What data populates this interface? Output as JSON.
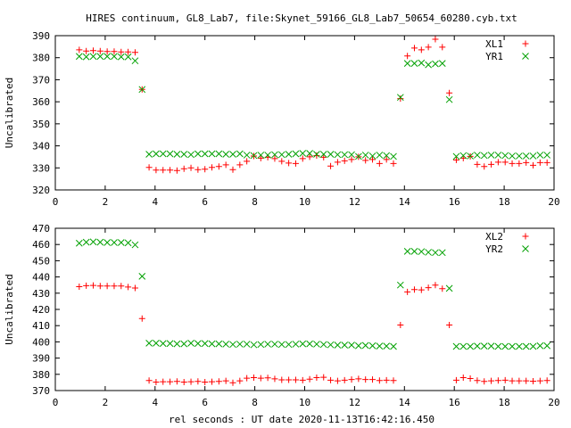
{
  "chart_data": {
    "title": "HIRES continuum, GL8_Lab7, file:Skynet_59166_GL8_Lab7_50654_60280.cyb.txt",
    "xlabel": "rel seconds : UT date 2020-11-13T16:42:16.450",
    "colors": {
      "red": "#ff0000",
      "green": "#00a000"
    },
    "charts": [
      {
        "type": "scatter",
        "ylabel": "Uncalibrated",
        "xlim": [
          0,
          20
        ],
        "ylim": [
          320,
          390
        ],
        "xticks": [
          "0",
          "2",
          "4",
          "6",
          "8",
          "10",
          "12",
          "14",
          "16",
          "18",
          "20"
        ],
        "yticks": [
          "320",
          "330",
          "340",
          "350",
          "360",
          "370",
          "380",
          "390"
        ],
        "legend_position": "top-right",
        "series": [
          {
            "name": "XL1",
            "marker": "plus",
            "color": "#ff0000",
            "x": [
              0.96,
              1.24,
              1.52,
              1.8,
              2.08,
              2.36,
              2.64,
              2.92,
              3.2,
              3.48,
              3.76,
              4.04,
              4.32,
              4.6,
              4.88,
              5.16,
              5.44,
              5.72,
              6.0,
              6.28,
              6.56,
              6.84,
              7.12,
              7.4,
              7.68,
              7.96,
              8.24,
              8.52,
              8.8,
              9.08,
              9.36,
              9.64,
              9.92,
              10.2,
              10.48,
              10.76,
              11.04,
              11.32,
              11.6,
              11.88,
              12.16,
              12.44,
              12.72,
              13.0,
              13.28,
              13.56,
              13.84,
              14.12,
              14.4,
              14.68,
              14.96,
              15.24,
              15.52,
              15.8,
              16.08,
              16.36,
              16.64,
              16.92,
              17.2,
              17.48,
              17.76,
              18.04,
              18.32,
              18.6,
              18.88,
              19.16,
              19.44,
              19.72
            ],
            "y": [
              383.6,
              383.0,
              383.2,
              383.0,
              382.8,
              382.8,
              382.6,
              382.6,
              382.4,
              365.6,
              330.2,
              329.0,
              329.0,
              329.0,
              328.8,
              329.6,
              330.0,
              329.2,
              329.4,
              330.2,
              330.6,
              331.4,
              329.2,
              331.4,
              333.0,
              335.4,
              334.4,
              334.8,
              334.2,
              333.0,
              332.2,
              332.0,
              334.2,
              335.0,
              335.6,
              334.8,
              330.8,
              332.6,
              333.2,
              333.8,
              335.0,
              333.4,
              333.8,
              332.0,
              333.8,
              332.0,
              361.4,
              380.8,
              384.4,
              383.6,
              384.8,
              388.4,
              384.8,
              364.0,
              333.6,
              334.4,
              335.2,
              331.6,
              330.6,
              331.6,
              332.6,
              332.6,
              332.0,
              332.0,
              332.4,
              331.2,
              332.4,
              332.4
            ]
          },
          {
            "name": "YR1",
            "marker": "cross",
            "color": "#00a000",
            "x": [
              0.96,
              1.24,
              1.52,
              1.8,
              2.08,
              2.36,
              2.64,
              2.92,
              3.2,
              3.48,
              3.76,
              4.04,
              4.32,
              4.6,
              4.88,
              5.16,
              5.44,
              5.72,
              6.0,
              6.28,
              6.56,
              6.84,
              7.12,
              7.4,
              7.68,
              7.96,
              8.24,
              8.52,
              8.8,
              9.08,
              9.36,
              9.64,
              9.92,
              10.2,
              10.48,
              10.76,
              11.04,
              11.32,
              11.6,
              11.88,
              12.16,
              12.44,
              12.72,
              13.0,
              13.28,
              13.56,
              13.84,
              14.12,
              14.4,
              14.68,
              14.96,
              15.24,
              15.52,
              15.8,
              16.08,
              16.36,
              16.64,
              16.92,
              17.2,
              17.48,
              17.76,
              18.04,
              18.32,
              18.6,
              18.88,
              19.16,
              19.44,
              19.72
            ],
            "y": [
              380.6,
              380.4,
              380.6,
              380.6,
              380.6,
              380.6,
              380.4,
              380.4,
              378.6,
              365.6,
              336.2,
              336.4,
              336.4,
              336.4,
              336.2,
              336.2,
              336.0,
              336.4,
              336.4,
              336.4,
              336.4,
              336.2,
              336.2,
              336.4,
              335.8,
              335.6,
              335.8,
              335.8,
              336.0,
              336.0,
              336.2,
              336.4,
              336.6,
              336.6,
              336.2,
              336.2,
              336.2,
              336.0,
              336.0,
              336.0,
              335.2,
              335.8,
              335.4,
              335.8,
              335.6,
              335.2,
              362.0,
              377.4,
              377.4,
              377.6,
              376.8,
              377.2,
              377.4,
              361.0,
              335.2,
              335.6,
              335.4,
              335.8,
              335.6,
              335.8,
              335.8,
              335.6,
              335.4,
              335.4,
              335.4,
              335.4,
              335.8,
              335.8
            ]
          }
        ]
      },
      {
        "type": "scatter",
        "ylabel": "Uncalibrated",
        "xlim": [
          0,
          20
        ],
        "ylim": [
          370,
          470
        ],
        "xticks": [
          "0",
          "2",
          "4",
          "6",
          "8",
          "10",
          "12",
          "14",
          "16",
          "18",
          "20"
        ],
        "yticks": [
          "370",
          "380",
          "390",
          "400",
          "410",
          "420",
          "430",
          "440",
          "450",
          "460",
          "470"
        ],
        "legend_position": "top-right",
        "series": [
          {
            "name": "XL2",
            "marker": "plus",
            "color": "#ff0000",
            "x": [
              0.96,
              1.24,
              1.52,
              1.8,
              2.08,
              2.36,
              2.64,
              2.92,
              3.2,
              3.48,
              3.76,
              4.04,
              4.32,
              4.6,
              4.88,
              5.16,
              5.44,
              5.72,
              6.0,
              6.28,
              6.56,
              6.84,
              7.12,
              7.4,
              7.68,
              7.96,
              8.24,
              8.52,
              8.8,
              9.08,
              9.36,
              9.64,
              9.92,
              10.2,
              10.48,
              10.76,
              11.04,
              11.32,
              11.6,
              11.88,
              12.16,
              12.44,
              12.72,
              13.0,
              13.28,
              13.56,
              13.84,
              14.12,
              14.4,
              14.68,
              14.96,
              15.24,
              15.52,
              15.8,
              16.08,
              16.36,
              16.64,
              16.92,
              17.2,
              17.48,
              17.76,
              18.04,
              18.32,
              18.6,
              18.88,
              19.16,
              19.44,
              19.72
            ],
            "y": [
              434.0,
              434.6,
              434.8,
              434.4,
              434.4,
              434.4,
              434.4,
              433.8,
              433.2,
              414.4,
              376.2,
              375.2,
              375.4,
              375.4,
              375.6,
              375.2,
              375.4,
              375.6,
              375.2,
              375.4,
              375.6,
              376.0,
              374.8,
              376.0,
              377.6,
              378.0,
              377.6,
              377.8,
              377.2,
              376.6,
              376.6,
              376.6,
              376.4,
              377.0,
              378.0,
              378.2,
              376.4,
              376.0,
              376.4,
              376.8,
              377.2,
              376.8,
              376.8,
              376.2,
              376.4,
              376.2,
              410.4,
              430.8,
              432.2,
              432.0,
              433.4,
              435.0,
              432.8,
              410.4,
              376.4,
              378.0,
              377.4,
              376.2,
              375.6,
              376.0,
              376.2,
              376.4,
              376.0,
              376.0,
              376.0,
              375.8,
              376.0,
              376.2
            ]
          },
          {
            "name": "YR2",
            "marker": "cross",
            "color": "#00a000",
            "x": [
              0.96,
              1.24,
              1.52,
              1.8,
              2.08,
              2.36,
              2.64,
              2.92,
              3.2,
              3.48,
              3.76,
              4.04,
              4.32,
              4.6,
              4.88,
              5.16,
              5.44,
              5.72,
              6.0,
              6.28,
              6.56,
              6.84,
              7.12,
              7.4,
              7.68,
              7.96,
              8.24,
              8.52,
              8.8,
              9.08,
              9.36,
              9.64,
              9.92,
              10.2,
              10.48,
              10.76,
              11.04,
              11.32,
              11.6,
              11.88,
              12.16,
              12.44,
              12.72,
              13.0,
              13.28,
              13.56,
              13.84,
              14.12,
              14.4,
              14.68,
              14.96,
              15.24,
              15.52,
              15.8,
              16.08,
              16.36,
              16.64,
              16.92,
              17.2,
              17.48,
              17.76,
              18.04,
              18.32,
              18.6,
              18.88,
              19.16,
              19.44,
              19.72
            ],
            "y": [
              460.8,
              461.4,
              461.6,
              461.4,
              461.2,
              461.2,
              461.2,
              461.0,
              459.8,
              440.4,
              399.2,
              399.2,
              399.0,
              399.0,
              398.8,
              398.8,
              399.2,
              399.0,
              399.0,
              398.8,
              398.8,
              398.6,
              398.4,
              398.6,
              398.6,
              398.2,
              398.4,
              398.6,
              398.6,
              398.4,
              398.4,
              398.6,
              398.8,
              398.8,
              398.6,
              398.4,
              398.2,
              398.0,
              398.0,
              398.0,
              397.6,
              397.8,
              397.6,
              397.4,
              397.4,
              397.2,
              435.0,
              455.8,
              455.8,
              455.6,
              455.2,
              455.0,
              455.0,
              433.0,
              397.2,
              397.2,
              397.2,
              397.4,
              397.4,
              397.4,
              397.2,
              397.2,
              397.2,
              397.2,
              397.2,
              397.2,
              397.6,
              397.6
            ]
          }
        ]
      }
    ]
  }
}
